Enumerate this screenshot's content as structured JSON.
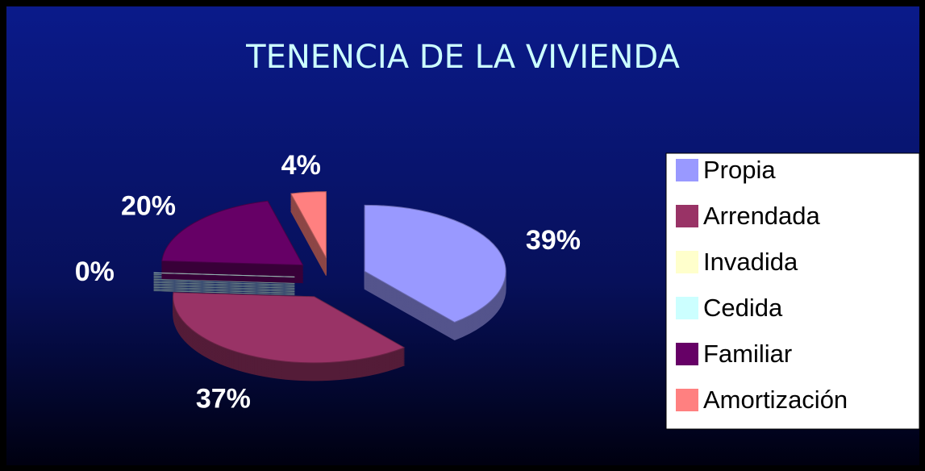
{
  "chart_data": {
    "type": "pie",
    "title": "TENENCIA DE LA VIVIENDA",
    "categories": [
      "Propia",
      "Arrendada",
      "Invadida",
      "Cedida",
      "Familiar",
      "Amortización"
    ],
    "values": [
      39,
      37,
      0,
      0,
      20,
      4
    ],
    "value_labels": [
      "39%",
      "37%",
      "0%",
      null,
      "20%",
      "4%"
    ],
    "colors": [
      "#9999ff",
      "#993366",
      "#ffffcc",
      "#ccffff",
      "#660066",
      "#ff8080"
    ],
    "legend": "right"
  }
}
